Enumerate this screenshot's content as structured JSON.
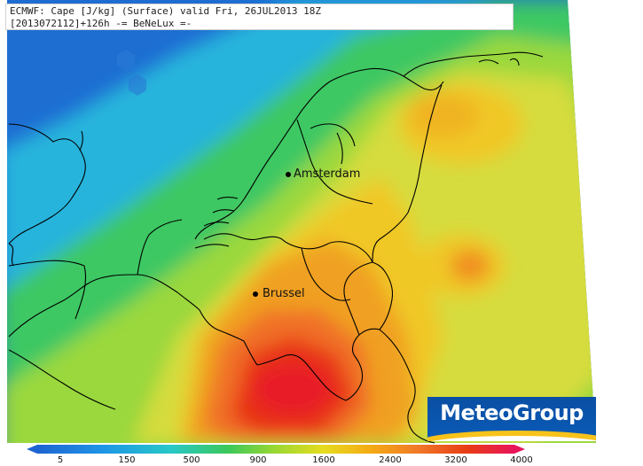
{
  "header": {
    "line1": "ECMWF: Cape [J/kg] (Surface) valid Fri, 26JUL2013 18Z",
    "line2": "[2013072112]+126h  -= BeNeLux =-"
  },
  "cities": [
    {
      "name": "Amsterdam"
    },
    {
      "name": "Brussel"
    }
  ],
  "logo": {
    "text": "MeteoGroup"
  },
  "legend": {
    "ticks": [
      "5",
      "150",
      "500",
      "900",
      "1600",
      "2400",
      "3200",
      "4000"
    ],
    "colors": [
      "#1e64d2",
      "#1e96e6",
      "#28c8c8",
      "#3cc85a",
      "#78d23c",
      "#c8dc28",
      "#f0d21e",
      "#f5aa14",
      "#f07828",
      "#e83c14",
      "#e81428",
      "#e8145a"
    ]
  },
  "field_colors": {
    "low": "#1e6ed2",
    "mid_low": "#28b4dc",
    "mid": "#3cc864",
    "mid_high": "#c8dc3c",
    "high": "#f0a020",
    "very_high": "#e83218"
  }
}
